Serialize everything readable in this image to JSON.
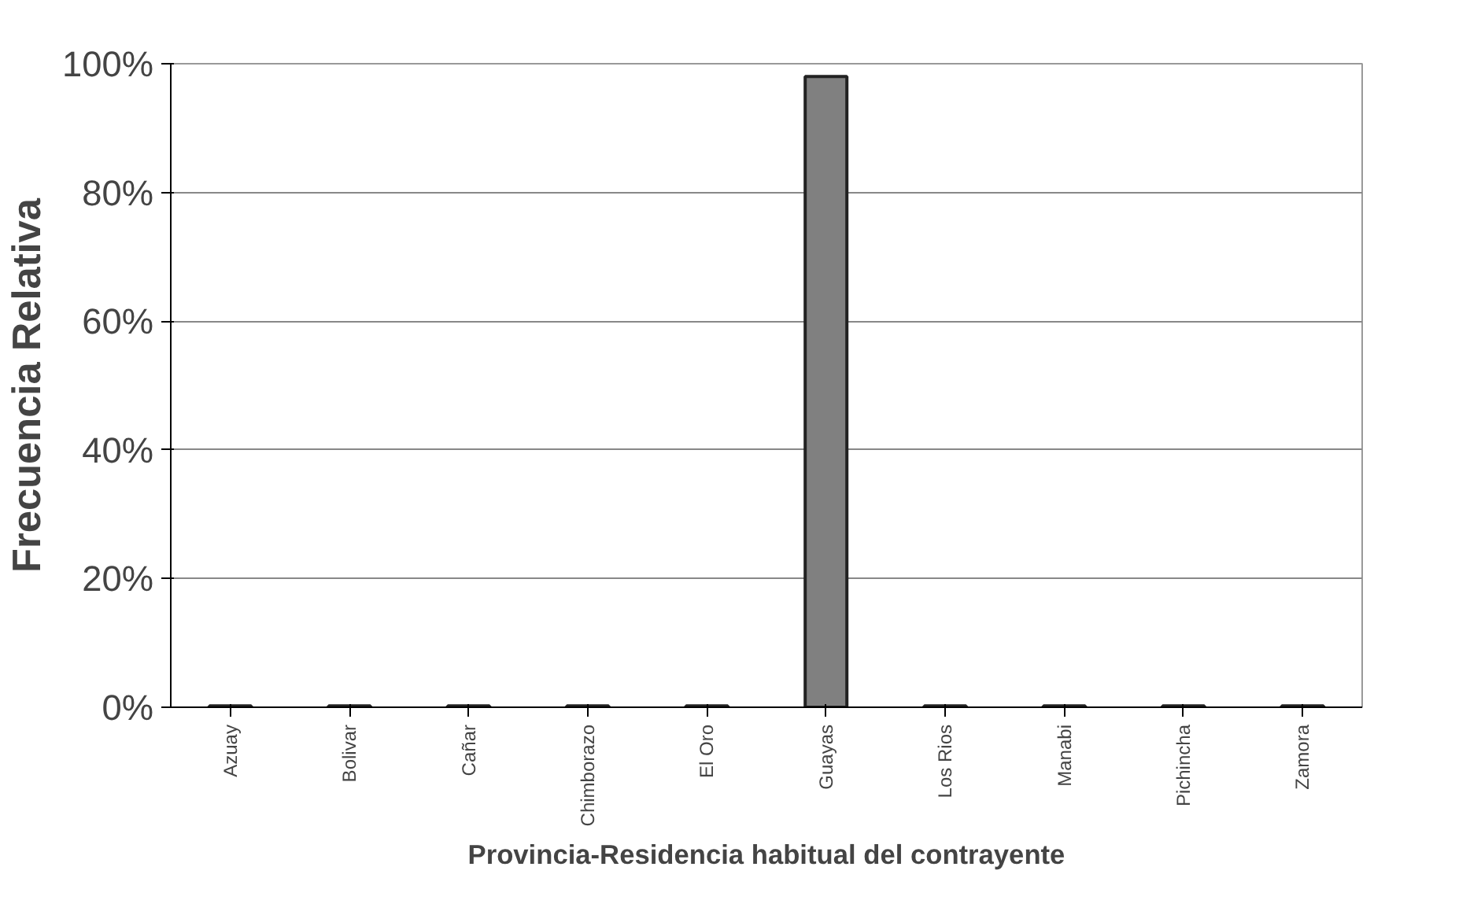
{
  "chart_data": {
    "type": "bar",
    "xlabel": "Provincia-Residencia habitual del contrayente",
    "ylabel": "Frecuencia Relativa",
    "categories": [
      "Azuay",
      "Bolivar",
      "Cañar",
      "Chimborazo",
      "El Oro",
      "Guayas",
      "Los Rios",
      "Manabi",
      "Pichincha",
      "Zamora"
    ],
    "values": [
      0.2,
      0.2,
      0.2,
      0.2,
      0.2,
      98,
      0.2,
      0.2,
      0.2,
      0.2
    ],
    "color": "#808080",
    "ylim": [
      0,
      100
    ],
    "yticks": [
      {
        "value": 0,
        "label": "0%"
      },
      {
        "value": 20,
        "label": "20%"
      },
      {
        "value": 40,
        "label": "40%"
      },
      {
        "value": 60,
        "label": "60%"
      },
      {
        "value": 80,
        "label": "80%"
      },
      {
        "value": 100,
        "label": "100%"
      }
    ],
    "grid": "y"
  }
}
